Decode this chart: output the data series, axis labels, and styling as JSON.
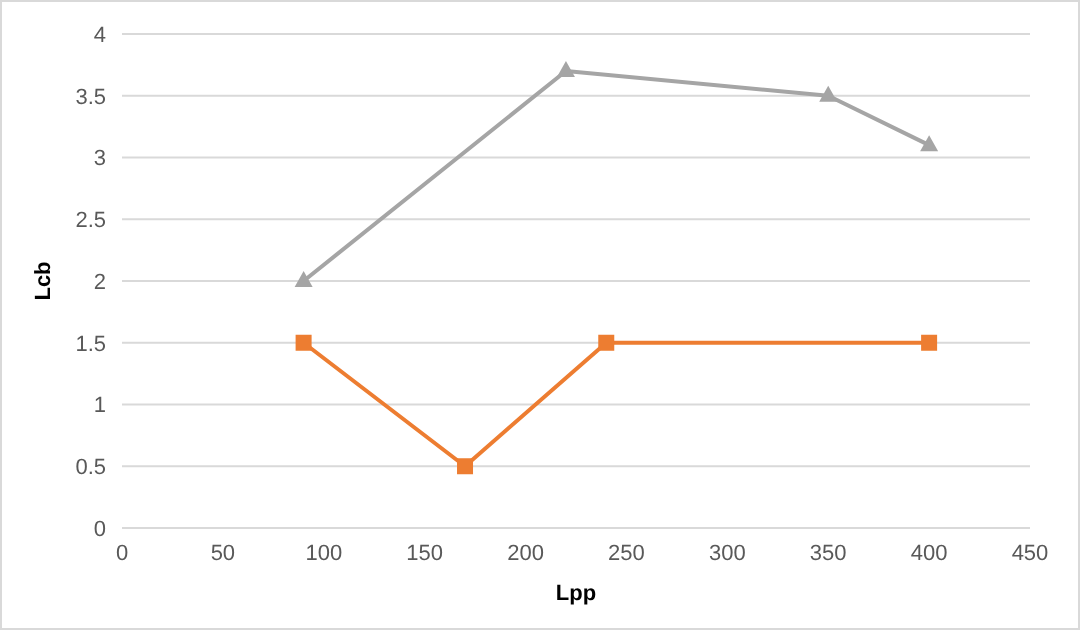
{
  "chart_data": {
    "type": "line",
    "xlabel": "Lpp",
    "ylabel": "Lcb",
    "xlim": [
      0,
      450
    ],
    "xticks": [
      0,
      50,
      100,
      150,
      200,
      250,
      300,
      350,
      400,
      450
    ],
    "ylim": [
      0,
      4
    ],
    "yticks": [
      0,
      0.5,
      1,
      1.5,
      2,
      2.5,
      3,
      3.5,
      4
    ],
    "grid": "y",
    "legend": false,
    "series": [
      {
        "color": "#a5a5a5",
        "marker": "triangle",
        "x": [
          90,
          220,
          350,
          400
        ],
        "values": [
          2,
          3.7,
          3.5,
          3.1
        ]
      },
      {
        "color": "#ed7d31",
        "marker": "square",
        "x": [
          90,
          170,
          240,
          400
        ],
        "values": [
          1.5,
          0.5,
          1.5,
          1.5
        ]
      }
    ]
  }
}
